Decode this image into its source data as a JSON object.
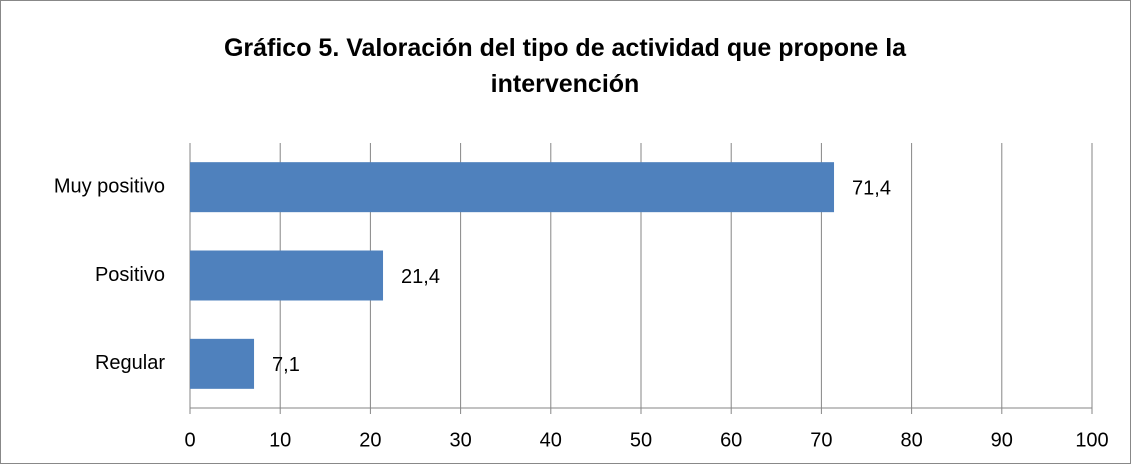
{
  "chart_data": {
    "type": "bar",
    "orientation": "horizontal",
    "title": "Gráfico 5. Valoración del tipo de actividad que propone la intervención",
    "categories": [
      "Muy positivo",
      "Positivo",
      "Regular"
    ],
    "values": [
      71.4,
      21.4,
      7.1
    ],
    "value_labels": [
      "71,4",
      "21,4",
      "7,1"
    ],
    "color": "#4f81bd",
    "xlim": [
      0,
      100
    ],
    "xticks": [
      0,
      10,
      20,
      30,
      40,
      50,
      60,
      70,
      80,
      90,
      100
    ],
    "grid": true
  }
}
